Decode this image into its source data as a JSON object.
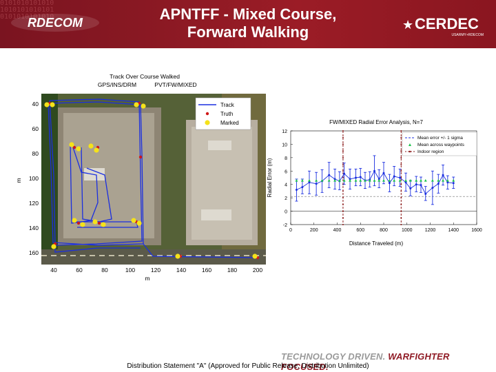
{
  "header": {
    "binary_pattern": "0101010101010\n1010101010101\n0101010101010",
    "logo_left_text": "RDECOM",
    "title_line1": "APNTFF - Mixed Course,",
    "title_line2": "Forward Walking",
    "logo_right_text": "CERDEC",
    "logo_right_sub": "USARMY+RDECOM"
  },
  "left_plot": {
    "title_line1": "Track Over Course Walked",
    "title_left": "GPS/INS/DRM",
    "title_right": "PVT/FW/MIXED",
    "xlabel": "m",
    "ylabel": "m",
    "xticks": [
      "40",
      "60",
      "80",
      "100",
      "120",
      "140",
      "160",
      "180",
      "200"
    ],
    "yticks": [
      "40",
      "60",
      "80",
      "100",
      "120",
      "140",
      "160"
    ],
    "legend": [
      "Track",
      "Truth",
      "Marked"
    ],
    "colors": {
      "track": "#1a2ee0",
      "truth": "#d01818",
      "marked": "#f5e21a"
    }
  },
  "chart_data": {
    "type": "line",
    "title": "FW/MIXED Radial Error Analysis, N=7",
    "xlabel": "Distance Traveled (m)",
    "ylabel": "Radial Error (m)",
    "xlim": [
      0,
      1600
    ],
    "ylim": [
      -2,
      12
    ],
    "xticks": [
      "0",
      "200",
      "400",
      "600",
      "800",
      "1000",
      "1200",
      "1400",
      "1600"
    ],
    "yticks": [
      "-2",
      "0",
      "2",
      "4",
      "6",
      "8",
      "10",
      "12"
    ],
    "legend": [
      "Mean error +/- 1 sigma",
      "Mean across waypoints",
      "Indoor region"
    ],
    "mean_across_waypoints": 4.6,
    "two_sigma_level": 2.2,
    "indoor_region_x": [
      450,
      950
    ],
    "series": [
      {
        "name": "Mean error +/- 1 sigma",
        "x": [
          50,
          100,
          160,
          220,
          270,
          330,
          380,
          420,
          460,
          510,
          560,
          600,
          640,
          680,
          720,
          760,
          800,
          850,
          890,
          940,
          990,
          1030,
          1080,
          1120,
          1160,
          1220,
          1270,
          1310,
          1350,
          1400
        ],
        "y": [
          3.2,
          3.6,
          4.3,
          4.1,
          4.5,
          5.4,
          4.8,
          4.5,
          5.6,
          4.8,
          5.0,
          5.1,
          4.6,
          4.7,
          6.0,
          4.8,
          5.7,
          4.2,
          5.2,
          5.0,
          4.3,
          3.4,
          4.0,
          3.9,
          2.6,
          3.5,
          4.1,
          5.4,
          4.3,
          4.2
        ],
        "low": [
          1.5,
          2.6,
          2.6,
          2.4,
          2.8,
          3.5,
          3.3,
          3.2,
          4.0,
          3.3,
          3.8,
          3.8,
          3.4,
          3.6,
          3.8,
          3.5,
          4.1,
          2.9,
          3.8,
          3.7,
          3.0,
          2.3,
          2.9,
          2.8,
          1.6,
          1.0,
          2.7,
          3.9,
          3.3,
          3.4
        ],
        "high": [
          4.8,
          4.8,
          6.0,
          5.8,
          6.2,
          7.3,
          6.3,
          5.9,
          7.2,
          6.3,
          6.3,
          6.4,
          5.8,
          5.9,
          8.3,
          6.2,
          7.3,
          5.5,
          6.7,
          6.3,
          5.7,
          4.6,
          5.2,
          5.1,
          3.7,
          6.0,
          5.5,
          6.9,
          5.3,
          5.1
        ]
      }
    ],
    "colors": {
      "error": "#1a2ee0",
      "mean": "#1cc44c",
      "indoor": "#8a1a1a",
      "sigma": "#707070"
    }
  },
  "tagline": {
    "part1": "TECHNOLOGY DRIVEN.",
    "part2": "WARFIGHTER FOCUSED."
  },
  "footer": {
    "text": "Distribution Statement \"A\" (Approved for Public Release, Distribution Unlimited)"
  }
}
